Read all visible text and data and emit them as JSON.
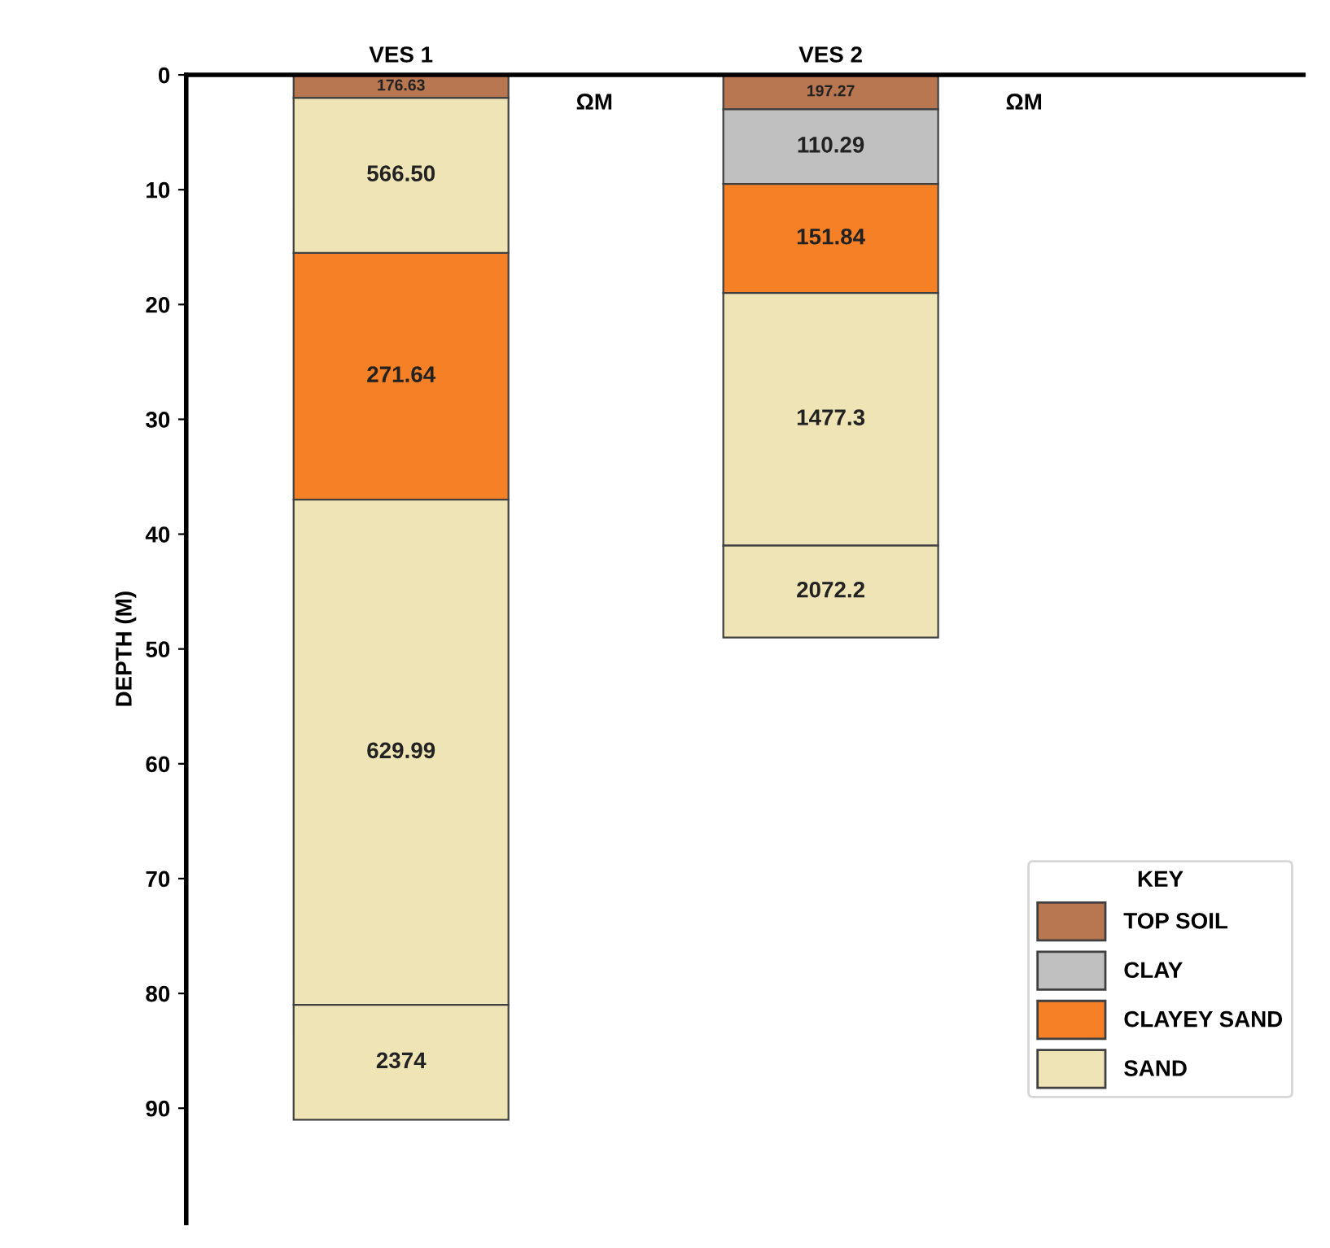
{
  "chart_data": {
    "type": "bar",
    "categories": [
      "VES 1",
      "VES 2"
    ],
    "ylabel": "DEPTH (M)",
    "ylim": [
      100,
      0
    ],
    "yticks": [
      0,
      10,
      20,
      30,
      40,
      50,
      60,
      70,
      80,
      90
    ],
    "legend": "bottom right",
    "legend_title": "KEY",
    "grid": false,
    "annotations": [
      "ΩM",
      "ΩM",
      "176.63",
      "566.50",
      "271.64",
      "629.99",
      "2374",
      "197.27",
      "110.29",
      "151.84",
      "1477.3",
      "2072.2"
    ],
    "series": [
      {
        "name": "TOP SOIL",
        "color": "#b87651",
        "values": [
          2,
          3
        ],
        "base": [
          0,
          0
        ]
      },
      {
        "name": "CLAY",
        "color": "#c0c0c0",
        "values": [
          null,
          6.5
        ],
        "base": [
          null,
          3
        ]
      },
      {
        "name": "CLAYEY SAND",
        "color": "#f58025",
        "values": [
          21.5,
          9.5
        ],
        "base": [
          15.5,
          9.5
        ]
      },
      {
        "name": "SAND",
        "color": "#efe4b5",
        "values": [
          13.5,
          22
        ],
        "base": [
          2,
          19
        ]
      },
      {
        "color": "#efe4b5",
        "values": [
          44,
          8
        ],
        "base": [
          37,
          41
        ]
      },
      {
        "color": "#efe4b5",
        "values": [
          10,
          null
        ],
        "base": [
          81,
          null
        ]
      }
    ]
  }
}
